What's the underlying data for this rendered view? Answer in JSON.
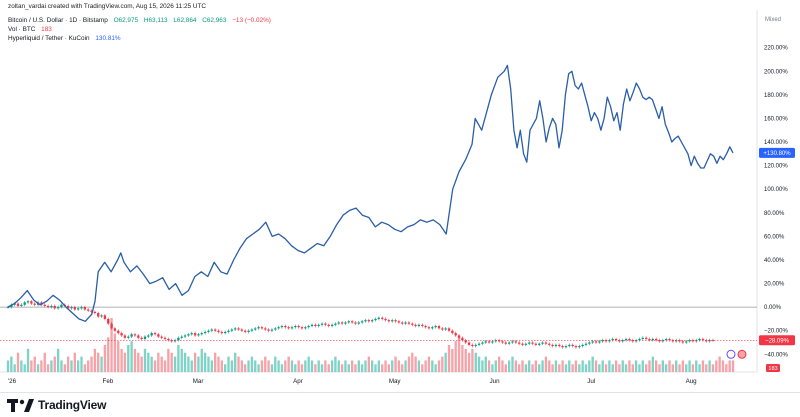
{
  "credit": "zoltan_vardai created with TradingView.com, Aug 15, 2026 11:25 UTC",
  "legend": {
    "symbol": "Bitcoin / U.S. Dollar · 1D · Bitstamp",
    "o": "O62,975",
    "h": "H63,113",
    "l": "L62,864",
    "c": "C62,963",
    "chg": "−13 (−0.02%)",
    "vol_label": "Vol · BTC",
    "vol_value": "183",
    "compare_label": "Hyperliquid / Tether · KuCoin",
    "compare_value": "130.81%"
  },
  "brand": "TradingView",
  "colors": {
    "line": "#2a5ea8",
    "up": "#089981",
    "down": "#f23645",
    "vol_up": "#7fd3c6",
    "vol_down": "#f5a3a8",
    "badge_blue": "#2962ff",
    "badge_red": "#f23645"
  },
  "chart_data": {
    "type": "line",
    "scale_mode": "Mixed",
    "yaxis": {
      "ticks": [
        "220.00%",
        "200.00%",
        "180.00%",
        "160.00%",
        "140.00%",
        "120.00%",
        "100.00%",
        "80.00%",
        "60.00%",
        "40.00%",
        "20.00%",
        "0.00%",
        "−20.00%",
        "−40.00%"
      ],
      "ticks_values": [
        220,
        200,
        180,
        160,
        140,
        120,
        100,
        80,
        60,
        40,
        20,
        0,
        -20,
        -40
      ],
      "range": [
        -55,
        235
      ]
    },
    "xaxis": {
      "tick_labels": [
        "'26",
        "Feb",
        "Mar",
        "Apr",
        "May",
        "Jun",
        "Jul",
        "Aug"
      ],
      "tick_days": [
        0,
        31,
        59,
        90,
        120,
        151,
        181,
        212
      ],
      "range_days": [
        0,
        225
      ]
    },
    "series": [
      {
        "name": "Hyperliquid / Tether · KuCoin",
        "style": "line",
        "last_label": "+130.80%",
        "points": [
          [
            0,
            0
          ],
          [
            2,
            3
          ],
          [
            4,
            8
          ],
          [
            6,
            14
          ],
          [
            8,
            6
          ],
          [
            10,
            2
          ],
          [
            12,
            5
          ],
          [
            14,
            10
          ],
          [
            16,
            6
          ],
          [
            18,
            0
          ],
          [
            20,
            -5
          ],
          [
            22,
            -10
          ],
          [
            24,
            -12
          ],
          [
            26,
            -6
          ],
          [
            27,
            5
          ],
          [
            28,
            30
          ],
          [
            30,
            38
          ],
          [
            32,
            30
          ],
          [
            34,
            40
          ],
          [
            35,
            46
          ],
          [
            36,
            38
          ],
          [
            38,
            30
          ],
          [
            40,
            35
          ],
          [
            42,
            28
          ],
          [
            44,
            20
          ],
          [
            46,
            22
          ],
          [
            48,
            25
          ],
          [
            50,
            15
          ],
          [
            52,
            20
          ],
          [
            54,
            10
          ],
          [
            56,
            14
          ],
          [
            58,
            26
          ],
          [
            60,
            30
          ],
          [
            62,
            26
          ],
          [
            64,
            38
          ],
          [
            66,
            30
          ],
          [
            68,
            28
          ],
          [
            70,
            40
          ],
          [
            72,
            50
          ],
          [
            74,
            58
          ],
          [
            76,
            62
          ],
          [
            78,
            66
          ],
          [
            80,
            72
          ],
          [
            82,
            60
          ],
          [
            84,
            62
          ],
          [
            86,
            58
          ],
          [
            88,
            52
          ],
          [
            90,
            48
          ],
          [
            92,
            46
          ],
          [
            94,
            50
          ],
          [
            96,
            54
          ],
          [
            98,
            52
          ],
          [
            100,
            60
          ],
          [
            102,
            70
          ],
          [
            104,
            78
          ],
          [
            106,
            82
          ],
          [
            108,
            84
          ],
          [
            110,
            78
          ],
          [
            112,
            76
          ],
          [
            114,
            68
          ],
          [
            116,
            72
          ],
          [
            118,
            70
          ],
          [
            120,
            66
          ],
          [
            122,
            64
          ],
          [
            124,
            68
          ],
          [
            126,
            70
          ],
          [
            128,
            74
          ],
          [
            130,
            72
          ],
          [
            132,
            74
          ],
          [
            134,
            70
          ],
          [
            136,
            62
          ],
          [
            138,
            100
          ],
          [
            140,
            115
          ],
          [
            142,
            125
          ],
          [
            144,
            138
          ],
          [
            145,
            160
          ],
          [
            147,
            150
          ],
          [
            149,
            170
          ],
          [
            150,
            180
          ],
          [
            152,
            195
          ],
          [
            154,
            200
          ],
          [
            155,
            205
          ],
          [
            156,
            185
          ],
          [
            157,
            150
          ],
          [
            158,
            135
          ],
          [
            159,
            150
          ],
          [
            160,
            130
          ],
          [
            161,
            123
          ],
          [
            162,
            150
          ],
          [
            164,
            160
          ],
          [
            165,
            175
          ],
          [
            166,
            160
          ],
          [
            167,
            140
          ],
          [
            168,
            152
          ],
          [
            169,
            160
          ],
          [
            170,
            155
          ],
          [
            171,
            135
          ],
          [
            172,
            150
          ],
          [
            173,
            180
          ],
          [
            174,
            198
          ],
          [
            175,
            200
          ],
          [
            176,
            188
          ],
          [
            177,
            185
          ],
          [
            178,
            190
          ],
          [
            179,
            180
          ],
          [
            180,
            170
          ],
          [
            181,
            158
          ],
          [
            182,
            165
          ],
          [
            183,
            160
          ],
          [
            184,
            150
          ],
          [
            185,
            160
          ],
          [
            186,
            178
          ],
          [
            187,
            170
          ],
          [
            188,
            158
          ],
          [
            189,
            165
          ],
          [
            190,
            150
          ],
          [
            191,
            172
          ],
          [
            192,
            185
          ],
          [
            193,
            175
          ],
          [
            194,
            182
          ],
          [
            195,
            190
          ],
          [
            196,
            185
          ],
          [
            197,
            178
          ],
          [
            198,
            176
          ],
          [
            199,
            178
          ],
          [
            200,
            176
          ],
          [
            201,
            168
          ],
          [
            202,
            160
          ],
          [
            203,
            170
          ],
          [
            204,
            155
          ],
          [
            205,
            148
          ],
          [
            206,
            140
          ],
          [
            207,
            143
          ],
          [
            208,
            145
          ],
          [
            209,
            140
          ],
          [
            210,
            135
          ],
          [
            211,
            130
          ],
          [
            212,
            120
          ],
          [
            213,
            128
          ],
          [
            214,
            122
          ],
          [
            215,
            118
          ],
          [
            216,
            118
          ],
          [
            217,
            124
          ],
          [
            218,
            130
          ],
          [
            219,
            128
          ],
          [
            220,
            122
          ],
          [
            221,
            128
          ],
          [
            222,
            125
          ],
          [
            223,
            130
          ],
          [
            224,
            136
          ],
          [
            225,
            130.8
          ]
        ]
      },
      {
        "name": "Bitcoin / U.S. Dollar · 1D · Bitstamp",
        "style": "candles",
        "last_label": "−28.09%",
        "close": [
          0,
          2,
          3,
          1,
          2,
          4,
          5,
          3,
          2,
          4,
          2,
          1,
          0,
          1,
          -1,
          0,
          2,
          1,
          -1,
          0,
          -2,
          -1,
          0,
          -2,
          -3,
          -4,
          -5,
          -8,
          -7,
          -10,
          -14,
          -18,
          -20,
          -22,
          -24,
          -26,
          -25,
          -23,
          -24,
          -26,
          -27,
          -25,
          -24,
          -22,
          -23,
          -25,
          -26,
          -27,
          -28,
          -29,
          -28,
          -26,
          -25,
          -24,
          -23,
          -22,
          -24,
          -23,
          -22,
          -21,
          -20,
          -19,
          -20,
          -21,
          -22,
          -21,
          -20,
          -19,
          -18,
          -19,
          -20,
          -21,
          -20,
          -19,
          -18,
          -17,
          -18,
          -19,
          -20,
          -19,
          -18,
          -17,
          -16,
          -17,
          -18,
          -17,
          -16,
          -17,
          -18,
          -17,
          -16,
          -15,
          -16,
          -15,
          -14,
          -15,
          -16,
          -15,
          -14,
          -13,
          -14,
          -13,
          -12,
          -13,
          -14,
          -13,
          -12,
          -11,
          -12,
          -11,
          -10,
          -9,
          -10,
          -11,
          -12,
          -11,
          -12,
          -13,
          -14,
          -13,
          -14,
          -15,
          -16,
          -15,
          -16,
          -17,
          -18,
          -17,
          -16,
          -18,
          -19,
          -18,
          -20,
          -22,
          -24,
          -26,
          -28,
          -30,
          -32,
          -33,
          -32,
          -31,
          -30,
          -29,
          -30,
          -29,
          -28,
          -29,
          -30,
          -31,
          -30,
          -29,
          -30,
          -31,
          -32,
          -31,
          -30,
          -31,
          -32,
          -31,
          -30,
          -31,
          -32,
          -33,
          -32,
          -33,
          -34,
          -33,
          -32,
          -33,
          -34,
          -33,
          -32,
          -31,
          -30,
          -29,
          -30,
          -29,
          -28,
          -29,
          -28,
          -27,
          -28,
          -29,
          -28,
          -27,
          -28,
          -29,
          -28,
          -27,
          -26,
          -27,
          -28,
          -27,
          -28,
          -29,
          -28,
          -27,
          -28,
          -29,
          -28,
          -29,
          -30,
          -29,
          -28,
          -29,
          -28,
          -27,
          -28,
          -29,
          -28,
          -28.1
        ]
      },
      {
        "name": "Vol · BTC",
        "style": "volume",
        "last_label": "183",
        "values": [
          3,
          4,
          2,
          5,
          3,
          2,
          6,
          3,
          4,
          2,
          3,
          5,
          2,
          3,
          4,
          6,
          3,
          2,
          4,
          3,
          5,
          3,
          4,
          2,
          3,
          4,
          6,
          5,
          4,
          7,
          9,
          14,
          10,
          8,
          6,
          5,
          7,
          8,
          6,
          5,
          4,
          6,
          5,
          4,
          3,
          5,
          4,
          3,
          6,
          5,
          4,
          7,
          6,
          5,
          4,
          3,
          5,
          4,
          6,
          5,
          4,
          3,
          5,
          4,
          3,
          2,
          4,
          3,
          5,
          4,
          3,
          2,
          3,
          4,
          3,
          2,
          3,
          4,
          3,
          2,
          4,
          3,
          2,
          3,
          4,
          3,
          2,
          3,
          2,
          3,
          4,
          3,
          2,
          3,
          2,
          3,
          2,
          3,
          4,
          3,
          2,
          3,
          2,
          3,
          2,
          3,
          2,
          3,
          4,
          3,
          2,
          3,
          2,
          3,
          2,
          3,
          4,
          3,
          2,
          3,
          4,
          5,
          4,
          3,
          2,
          3,
          4,
          3,
          2,
          3,
          4,
          5,
          7,
          6,
          8,
          9,
          7,
          6,
          5,
          6,
          5,
          4,
          3,
          4,
          3,
          2,
          3,
          4,
          3,
          2,
          3,
          4,
          3,
          2,
          3,
          2,
          3,
          2,
          3,
          2,
          3,
          4,
          3,
          2,
          3,
          2,
          3,
          2,
          3,
          2,
          3,
          2,
          3,
          2,
          3,
          4,
          3,
          2,
          3,
          2,
          3,
          2,
          3,
          2,
          3,
          2,
          3,
          2,
          3,
          2,
          3,
          2,
          3,
          4,
          3,
          2,
          3,
          2,
          3,
          2,
          3,
          2,
          3,
          2,
          3,
          2,
          3,
          2,
          3,
          2,
          3,
          2,
          3,
          4,
          3,
          2,
          3,
          3
        ]
      }
    ],
    "title": "",
    "xlabel": "",
    "ylabel": "",
    "grid": true
  }
}
